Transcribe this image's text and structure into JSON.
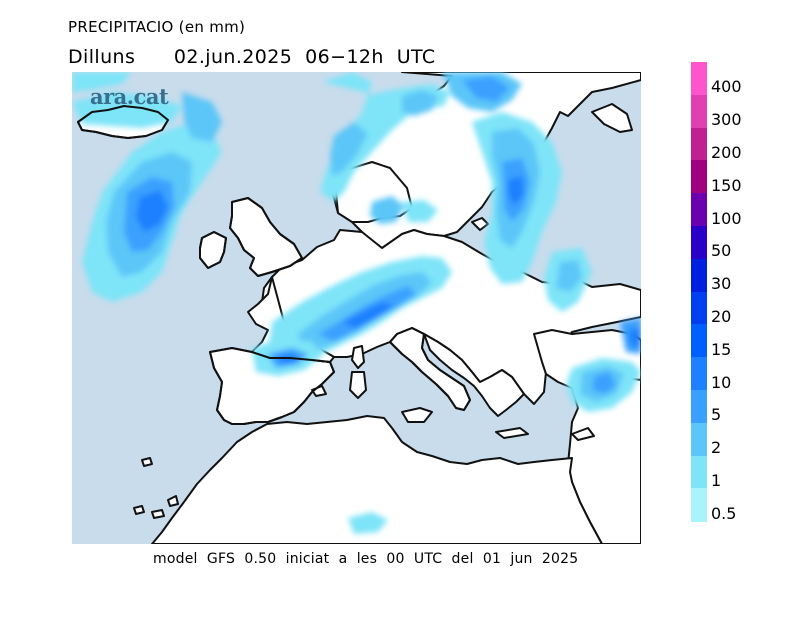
{
  "header": {
    "title": "PRECIPITACIO (en mm)",
    "day": "Dilluns",
    "date_range": "02.jun.2025  06−12h  UTC"
  },
  "logo": "ara.cat",
  "footer": "model  GFS  0.50  iniciat  a  les  00  UTC  del  01  jun  2025",
  "legend": {
    "levels": [
      {
        "label": "400",
        "color": "#ff55cc"
      },
      {
        "label": "300",
        "color": "#e040b0"
      },
      {
        "label": "200",
        "color": "#c02090"
      },
      {
        "label": "150",
        "color": "#a00080"
      },
      {
        "label": "100",
        "color": "#6a00b0"
      },
      {
        "label": "50",
        "color": "#2800c8"
      },
      {
        "label": "30",
        "color": "#0020e0"
      },
      {
        "label": "20",
        "color": "#0040f0"
      },
      {
        "label": "15",
        "color": "#0060ff"
      },
      {
        "label": "10",
        "color": "#1e80ff"
      },
      {
        "label": "5",
        "color": "#3aa0ff"
      },
      {
        "label": "2",
        "color": "#5cc6f8"
      },
      {
        "label": "1",
        "color": "#7ee4f8"
      },
      {
        "label": "0.5",
        "color": "#a8f4fa"
      }
    ]
  },
  "colors": {
    "sea": "#c8dcec",
    "land": "#ffffff",
    "coast": "#111111"
  }
}
